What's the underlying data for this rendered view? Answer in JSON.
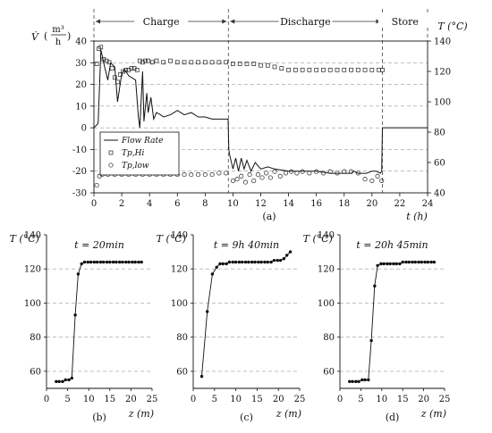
{
  "chart_data": [
    {
      "id": "a",
      "type": "line",
      "panel_label": "(a)",
      "phases": [
        "Charge",
        "Discharge",
        "Store"
      ],
      "phase_boundaries": [
        0,
        9.67,
        20.75,
        24
      ],
      "xlabel": "t (h)",
      "ylabel_left_symbol": "V̇",
      "ylabel_left_unit_top": "m³",
      "ylabel_left_unit_bottom": "h",
      "ylabel_right": "T (°C)",
      "xlim": [
        0,
        24
      ],
      "ylim_left": [
        -30,
        40
      ],
      "ylim_right": [
        40,
        140
      ],
      "x_ticks": [
        "0",
        "2",
        "4",
        "6",
        "8",
        "10",
        "12",
        "14",
        "16",
        "18",
        "20",
        "22",
        "24"
      ],
      "y_left_ticks": [
        "-30",
        "-20",
        "-10",
        "0",
        "10",
        "20",
        "30",
        "40"
      ],
      "y_right_ticks": [
        "40",
        "60",
        "80",
        "100",
        "120",
        "140"
      ],
      "legend": [
        "Flow Rate",
        "Tp,Hi",
        "Tp,low"
      ],
      "series": [
        {
          "name": "Flow Rate",
          "axis": "left",
          "x": [
            0,
            0.3,
            0.5,
            0.7,
            1.0,
            1.2,
            1.5,
            1.7,
            2.0,
            2.2,
            2.5,
            3.0,
            3.2,
            3.3,
            3.5,
            3.6,
            3.8,
            3.9,
            4.1,
            4.3,
            4.5,
            4.8,
            5.0,
            5.5,
            6.0,
            6.5,
            7.0,
            7.5,
            8.0,
            8.5,
            9.0,
            9.5,
            9.65,
            9.7,
            9.75,
            10.0,
            10.2,
            10.4,
            10.6,
            10.8,
            11.0,
            11.3,
            11.6,
            12.0,
            12.5,
            13.0,
            14.0,
            15.0,
            16.0,
            17.0,
            18.0,
            18.5,
            18.7,
            19.0,
            19.3,
            19.6,
            20.0,
            20.3,
            20.6,
            20.7,
            20.75,
            21.0,
            24.0
          ],
          "y": [
            0,
            2,
            36,
            30,
            22,
            30,
            28,
            12,
            25,
            27,
            24,
            22,
            5,
            0,
            26,
            3,
            16,
            7,
            14,
            4,
            7,
            6,
            5,
            6,
            8,
            6,
            7,
            5,
            5,
            4,
            4,
            4,
            4,
            -10,
            -12,
            -19,
            -14,
            -20,
            -14,
            -19,
            -15,
            -20,
            -16,
            -19,
            -18,
            -19,
            -20,
            -20,
            -20,
            -21,
            -21,
            -21,
            -20,
            -21,
            -21,
            -21,
            -20,
            -20,
            -21,
            -20,
            0,
            0,
            0
          ]
        },
        {
          "name": "Tp,Hi",
          "axis": "right",
          "x": [
            0.2,
            0.35,
            0.5,
            0.7,
            0.9,
            1.1,
            1.3,
            1.5,
            1.7,
            1.9,
            2.1,
            2.3,
            2.5,
            2.7,
            2.9,
            3.1,
            3.3,
            3.5,
            3.7,
            3.9,
            4.2,
            4.5,
            5.0,
            5.5,
            6.0,
            6.5,
            7.0,
            7.5,
            8.0,
            8.5,
            9.0,
            9.5,
            10.0,
            10.5,
            11.0,
            11.5,
            12.0,
            12.5,
            13.0,
            13.5,
            14.0,
            14.5,
            15.0,
            15.5,
            16.0,
            16.5,
            17.0,
            17.5,
            18.0,
            18.5,
            19.0,
            19.5,
            20.0,
            20.5,
            20.75
          ],
          "y": [
            125,
            135,
            136,
            128,
            127,
            126,
            122,
            116,
            113,
            118,
            120,
            121,
            121,
            122,
            122,
            121,
            127,
            126,
            127,
            127,
            126,
            127,
            126,
            127,
            126,
            126,
            126,
            126,
            126,
            126,
            126,
            126,
            125,
            125,
            125,
            125,
            124,
            124,
            123,
            122,
            121,
            121,
            121,
            121,
            121,
            121,
            121,
            121,
            121,
            121,
            121,
            121,
            121,
            121,
            121
          ]
        },
        {
          "name": "Tp,low",
          "axis": "right",
          "x": [
            0.2,
            0.4,
            0.6,
            1.0,
            1.5,
            2.0,
            2.5,
            3.0,
            3.5,
            4.0,
            4.5,
            5.0,
            5.5,
            6.0,
            6.5,
            7.0,
            7.5,
            8.0,
            8.5,
            9.0,
            9.5,
            10.0,
            10.3,
            10.6,
            10.9,
            11.2,
            11.5,
            11.8,
            12.1,
            12.4,
            12.7,
            13.0,
            13.4,
            13.8,
            14.2,
            14.6,
            15.0,
            15.5,
            16.0,
            16.5,
            17.0,
            17.5,
            18.0,
            18.5,
            19.0,
            19.5,
            20.0,
            20.4,
            20.7
          ],
          "y": [
            45,
            51,
            52,
            52,
            52,
            52,
            52,
            52,
            52,
            52,
            52,
            52,
            52,
            52,
            52,
            52,
            52,
            52,
            52,
            53,
            53,
            48,
            49,
            51,
            47,
            52,
            48,
            52,
            50,
            53,
            50,
            54,
            51,
            53,
            54,
            53,
            54,
            53,
            54,
            53,
            54,
            53,
            54,
            54,
            53,
            49,
            48,
            51,
            48
          ]
        }
      ]
    },
    {
      "id": "b",
      "type": "line",
      "panel_label": "(b)",
      "annotation": "t = 20min",
      "xlabel": "z (m)",
      "ylabel": "T (°C)",
      "xlim": [
        0,
        25
      ],
      "ylim": [
        50,
        140
      ],
      "x_ticks": [
        "0",
        "5",
        "10",
        "15",
        "20",
        "25"
      ],
      "y_ticks": [
        "60",
        "80",
        "100",
        "120",
        "140"
      ],
      "series": [
        {
          "name": "",
          "x": [
            2.3,
            3.0,
            3.8,
            4.5,
            5.3,
            6.0,
            6.8,
            7.5,
            8.3,
            9.0,
            9.8,
            10.5,
            11.3,
            12.0,
            12.8,
            13.5,
            14.3,
            15.0,
            15.8,
            16.5,
            17.3,
            18.0,
            18.8,
            19.5,
            20.3,
            21.0,
            21.8,
            22.5
          ],
          "y": [
            54,
            54,
            54,
            55,
            55,
            56,
            93,
            117,
            123,
            124,
            124,
            124,
            124,
            124,
            124,
            124,
            124,
            124,
            124,
            124,
            124,
            124,
            124,
            124,
            124,
            124,
            124,
            124
          ]
        }
      ]
    },
    {
      "id": "c",
      "type": "line",
      "panel_label": "(c)",
      "annotation": "t = 9h 40min",
      "xlabel": "z (m)",
      "ylabel": "T (°C)",
      "xlim": [
        0,
        25
      ],
      "ylim": [
        50,
        140
      ],
      "x_ticks": [
        "0",
        "5",
        "10",
        "15",
        "20",
        "25"
      ],
      "y_ticks": [
        "60",
        "80",
        "100",
        "120",
        "140"
      ],
      "series": [
        {
          "name": "",
          "x": [
            2.0,
            3.3,
            4.5,
            5.5,
            6.3,
            7.0,
            7.8,
            8.5,
            9.3,
            10.0,
            10.8,
            11.5,
            12.3,
            13.0,
            13.8,
            14.5,
            15.3,
            16.0,
            16.8,
            17.5,
            18.3,
            19.0,
            19.8,
            20.5,
            21.3,
            22.0,
            22.8
          ],
          "y": [
            57,
            95,
            117,
            121,
            123,
            123,
            123,
            124,
            124,
            124,
            124,
            124,
            124,
            124,
            124,
            124,
            124,
            124,
            124,
            124,
            124,
            125,
            125,
            125,
            126,
            128,
            130
          ]
        }
      ]
    },
    {
      "id": "d",
      "type": "line",
      "panel_label": "(d)",
      "annotation": "t = 20h 45min",
      "xlabel": "z (m)",
      "ylabel": "T (°C)",
      "xlim": [
        0,
        25
      ],
      "ylim": [
        50,
        140
      ],
      "x_ticks": [
        "0",
        "5",
        "10",
        "15",
        "20",
        "25"
      ],
      "y_ticks": [
        "60",
        "80",
        "100",
        "120",
        "140"
      ],
      "series": [
        {
          "name": "",
          "x": [
            2.3,
            3.0,
            3.8,
            4.5,
            5.3,
            6.0,
            6.8,
            7.5,
            8.3,
            9.0,
            9.8,
            10.5,
            11.3,
            12.0,
            12.8,
            13.5,
            14.3,
            15.0,
            15.8,
            16.5,
            17.3,
            18.0,
            18.8,
            19.5,
            20.3,
            21.0,
            21.8,
            22.5
          ],
          "y": [
            54,
            54,
            54,
            54,
            55,
            55,
            55,
            78,
            110,
            122,
            123,
            123,
            123,
            123,
            123,
            123,
            123,
            124,
            124,
            124,
            124,
            124,
            124,
            124,
            124,
            124,
            124,
            124
          ]
        }
      ]
    }
  ]
}
